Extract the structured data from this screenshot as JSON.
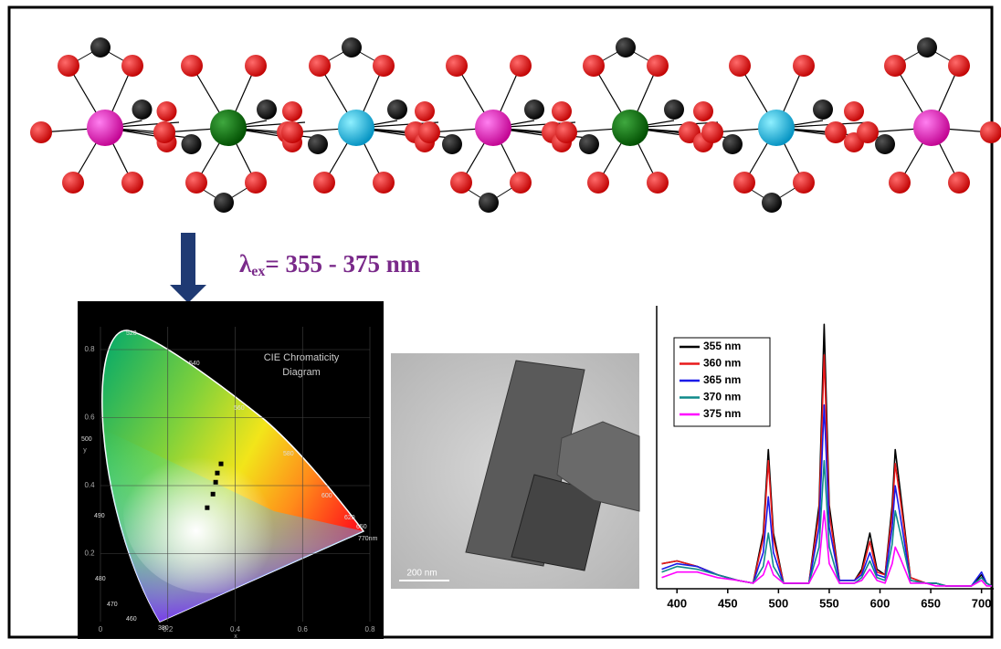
{
  "excitation_label": {
    "symbol": "λ",
    "subscript": "ex",
    "text": "= 355 - 375 nm"
  },
  "cie_diagram": {
    "title": "CIE Chromaticity Diagram",
    "x_label": "x",
    "y_label": "y",
    "xlim": [
      0,
      0.8
    ],
    "ylim": [
      0,
      0.8
    ],
    "xticks": [
      0,
      0.2,
      0.4,
      0.6,
      0.8
    ],
    "yticks": [
      0.2,
      0.4,
      0.6,
      0.8
    ],
    "wavelength_labels": [
      "520",
      "540",
      "560",
      "580",
      "600",
      "620",
      "650",
      "770nm",
      "500",
      "490",
      "480",
      "470",
      "460",
      "380"
    ],
    "points": {
      "x": [
        0.317,
        0.334,
        0.342,
        0.347,
        0.358
      ],
      "y": [
        0.335,
        0.375,
        0.41,
        0.437,
        0.464
      ],
      "color": "#000000"
    }
  },
  "tem_image": {
    "scale_bar": "200 nm"
  },
  "emission_spectrum": {
    "type": "line",
    "x": [
      385,
      400,
      420,
      440,
      460,
      475,
      485,
      490,
      495,
      505,
      530,
      540,
      545,
      550,
      560,
      575,
      582,
      590,
      597,
      605,
      612,
      615,
      620,
      630,
      645,
      655,
      665,
      690,
      700,
      705,
      710
    ],
    "xlim": [
      380,
      712
    ],
    "xticks": [
      400,
      450,
      500,
      550,
      600,
      650,
      700
    ],
    "ylim": [
      0,
      1
    ],
    "series": [
      {
        "name": "355 nm",
        "color": "#000000",
        "values": [
          0.09,
          0.1,
          0.08,
          0.05,
          0.03,
          0.02,
          0.2,
          0.5,
          0.2,
          0.02,
          0.02,
          0.3,
          0.95,
          0.3,
          0.03,
          0.03,
          0.07,
          0.2,
          0.07,
          0.05,
          0.3,
          0.5,
          0.35,
          0.04,
          0.02,
          0.02,
          0.01,
          0.01,
          0.05,
          0.02,
          0.01
        ]
      },
      {
        "name": "360 nm",
        "color": "#e8191a",
        "values": [
          0.09,
          0.1,
          0.08,
          0.05,
          0.03,
          0.02,
          0.18,
          0.46,
          0.18,
          0.02,
          0.02,
          0.27,
          0.84,
          0.27,
          0.03,
          0.03,
          0.06,
          0.17,
          0.06,
          0.05,
          0.27,
          0.45,
          0.32,
          0.04,
          0.02,
          0.02,
          0.01,
          0.01,
          0.04,
          0.02,
          0.01
        ]
      },
      {
        "name": "365 nm",
        "color": "#1a1ae8",
        "values": [
          0.07,
          0.09,
          0.08,
          0.05,
          0.03,
          0.02,
          0.13,
          0.33,
          0.13,
          0.02,
          0.02,
          0.22,
          0.66,
          0.22,
          0.03,
          0.03,
          0.05,
          0.13,
          0.05,
          0.04,
          0.22,
          0.37,
          0.26,
          0.03,
          0.02,
          0.02,
          0.01,
          0.01,
          0.06,
          0.02,
          0.01
        ]
      },
      {
        "name": "370 nm",
        "color": "#0f8a8a",
        "values": [
          0.06,
          0.08,
          0.07,
          0.05,
          0.03,
          0.02,
          0.08,
          0.2,
          0.08,
          0.02,
          0.02,
          0.15,
          0.46,
          0.15,
          0.02,
          0.02,
          0.04,
          0.1,
          0.04,
          0.03,
          0.16,
          0.28,
          0.2,
          0.03,
          0.02,
          0.02,
          0.01,
          0.01,
          0.04,
          0.02,
          0.01
        ]
      },
      {
        "name": "375 nm",
        "color": "#ff00ff",
        "values": [
          0.04,
          0.06,
          0.06,
          0.04,
          0.03,
          0.02,
          0.05,
          0.1,
          0.05,
          0.02,
          0.02,
          0.09,
          0.28,
          0.09,
          0.02,
          0.02,
          0.03,
          0.07,
          0.03,
          0.02,
          0.09,
          0.15,
          0.11,
          0.02,
          0.02,
          0.01,
          0.01,
          0.01,
          0.03,
          0.01,
          0.01
        ]
      }
    ]
  }
}
